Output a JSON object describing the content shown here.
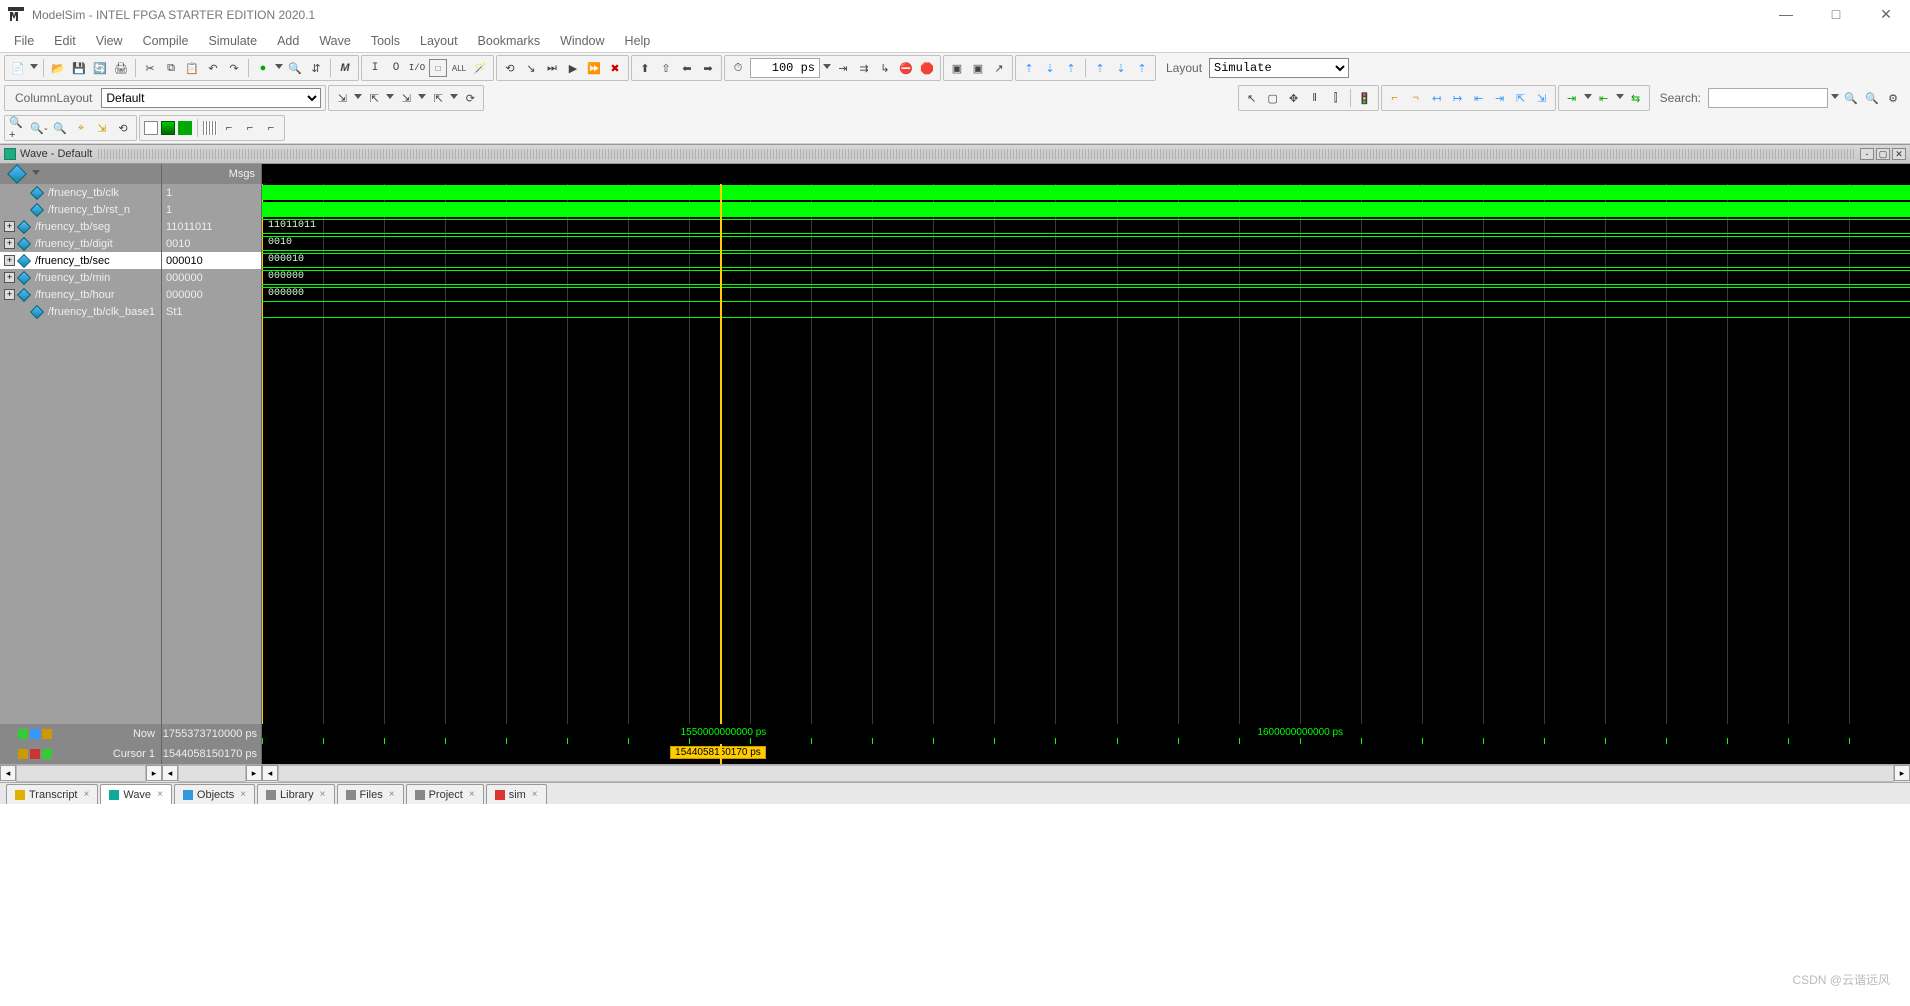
{
  "title": "ModelSim - INTEL FPGA STARTER EDITION 2020.1",
  "menu": [
    "File",
    "Edit",
    "View",
    "Compile",
    "Simulate",
    "Add",
    "Wave",
    "Tools",
    "Layout",
    "Bookmarks",
    "Window",
    "Help"
  ],
  "time_field": "100 ps",
  "layout_label": "Layout",
  "layout_value": "Simulate",
  "column_layout_label": "ColumnLayout",
  "column_layout_value": "Default",
  "search_label": "Search:",
  "wave_title": "Wave - Default",
  "msgs_header": "Msgs",
  "signals": [
    {
      "name": "/fruency_tb/clk",
      "value": "1",
      "expand": null,
      "kind": "bit",
      "wave_label": ""
    },
    {
      "name": "/fruency_tb/rst_n",
      "value": "1",
      "expand": null,
      "kind": "bit",
      "wave_label": ""
    },
    {
      "name": "/fruency_tb/seg",
      "value": "11011011",
      "expand": "+",
      "kind": "bus",
      "wave_label": "11011011"
    },
    {
      "name": "/fruency_tb/digit",
      "value": "0010",
      "expand": "+",
      "kind": "bus",
      "wave_label": "0010"
    },
    {
      "name": "/fruency_tb/sec",
      "value": "000010",
      "expand": "+",
      "kind": "bus",
      "wave_label": "000010",
      "selected": true
    },
    {
      "name": "/fruency_tb/min",
      "value": "000000",
      "expand": "+",
      "kind": "bus",
      "wave_label": "000000"
    },
    {
      "name": "/fruency_tb/hour",
      "value": "000000",
      "expand": "+",
      "kind": "bus",
      "wave_label": "000000"
    },
    {
      "name": "/fruency_tb/clk_base1",
      "value": "St1",
      "expand": null,
      "kind": "line",
      "wave_label": ""
    }
  ],
  "now_label": "Now",
  "now_value": "1755373710000 ps",
  "cursor1_label": "Cursor 1",
  "cursor1_value": "1544058150170 ps",
  "cursor_badge": "1544058150170 ps",
  "time_ticks": [
    {
      "pos_pct": 28,
      "label": "1550000000000 ps"
    },
    {
      "pos_pct": 63,
      "label": "1600000000000 ps"
    }
  ],
  "cursor_pos_pct": 27.8,
  "grid_lines": 28,
  "bottom_tabs": [
    {
      "label": "Transcript",
      "icon_color": "#e0b000",
      "active": false
    },
    {
      "label": "Wave",
      "icon_color": "#1a9",
      "active": true
    },
    {
      "label": "Objects",
      "icon_color": "#39d",
      "active": false
    },
    {
      "label": "Library",
      "icon_color": "#888",
      "active": false
    },
    {
      "label": "Files",
      "icon_color": "#888",
      "active": false
    },
    {
      "label": "Project",
      "icon_color": "#888",
      "active": false
    },
    {
      "label": "sim",
      "icon_color": "#d33",
      "active": false
    }
  ],
  "watermark": "CSDN @云谐远风",
  "colors": {
    "wave_green": "#00ff00",
    "bg_black": "#000000",
    "panel_gray": "#a0a0a0",
    "cursor_yellow": "#ffcc00"
  }
}
